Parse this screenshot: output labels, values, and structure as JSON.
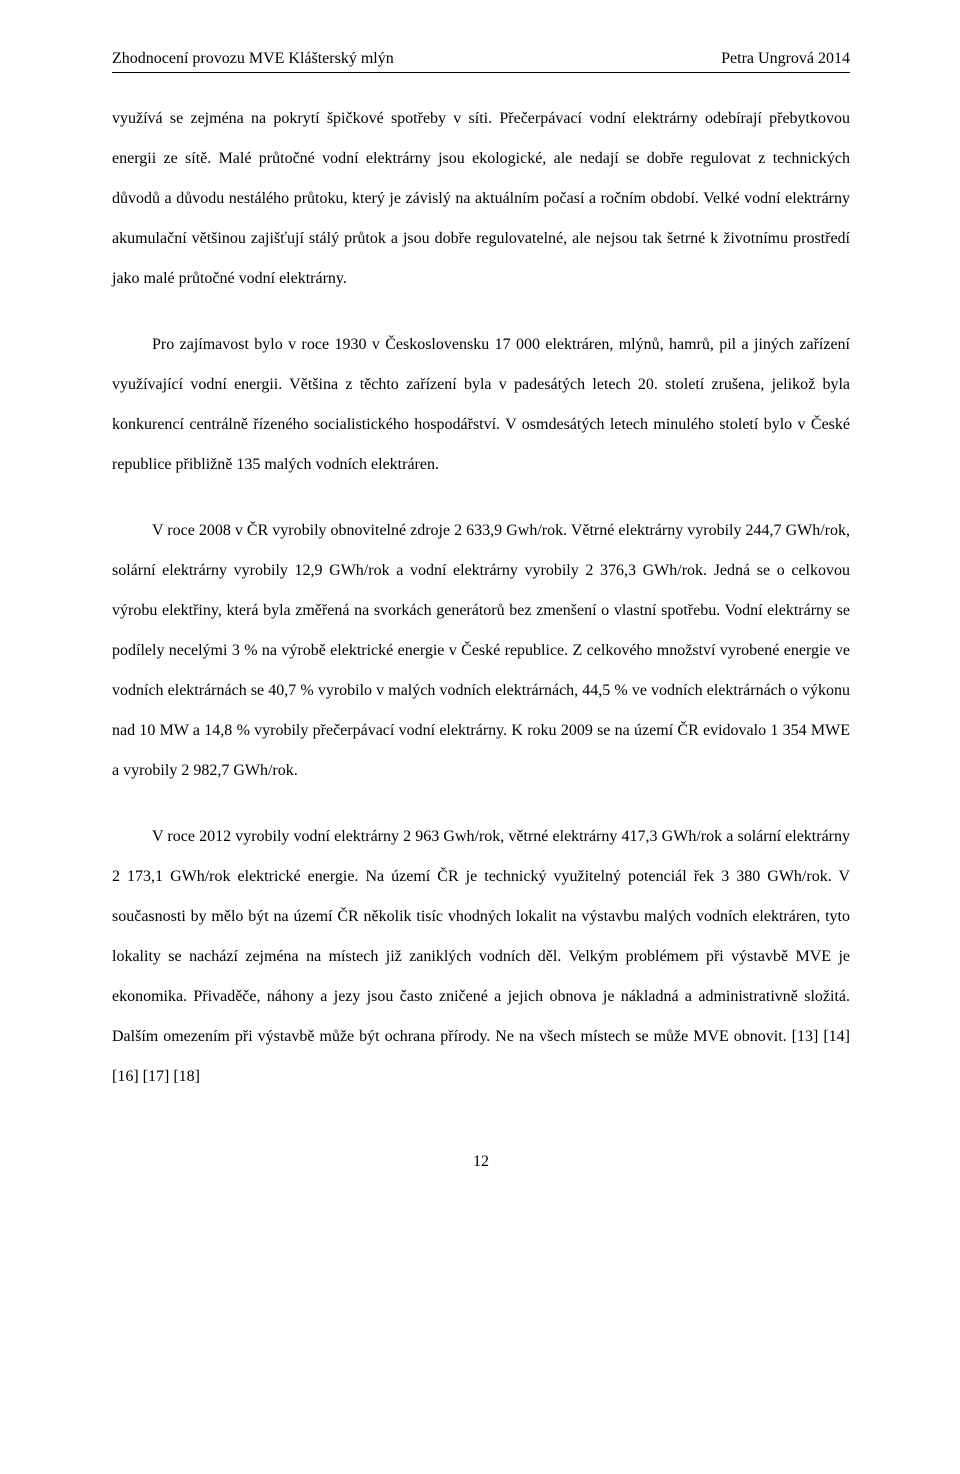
{
  "header": {
    "left": "Zhodnocení provozu MVE Klášterský mlýn",
    "right": "Petra Ungrová 2014"
  },
  "paragraphs": {
    "p1": "využívá se zejména na pokrytí špičkové spotřeby v síti. Přečerpávací vodní elektrárny odebírají přebytkovou energii ze sítě. Malé průtočné vodní elektrárny jsou ekologické, ale nedají se dobře regulovat z technických důvodů a důvodu nestálého průtoku, který je závislý na aktuálním počasí a ročním období. Velké vodní elektrárny akumulační většinou zajišťují stálý průtok a jsou dobře regulovatelné, ale nejsou tak šetrné k životnímu prostředí jako malé průtočné vodní elektrárny.",
    "p2": "Pro zajímavost bylo v roce 1930 v Československu 17 000 elektráren, mlýnů, hamrů, pil a jiných zařízení využívající vodní energii. Většina z těchto zařízení byla v padesátých letech 20. století zrušena, jelikož byla konkurencí centrálně řízeného socialistického hospodářství. V osmdesátých letech minulého století bylo v České republice přibližně 135 malých vodních elektráren.",
    "p3": "V roce 2008 v ČR vyrobily obnovitelné zdroje 2 633,9 Gwh/rok. Větrné elektrárny vyrobily 244,7 GWh/rok, solární elektrárny vyrobily 12,9 GWh/rok a vodní elektrárny vyrobily 2 376,3 GWh/rok. Jedná se o celkovou výrobu elektřiny, která byla změřená na svorkách generátorů bez zmenšení o vlastní spotřebu. Vodní elektrárny se podílely necelými 3 % na výrobě elektrické energie v České republice. Z celkového množství vyrobené energie ve vodních elektrárnách se 40,7 % vyrobilo v malých vodních elektrárnách, 44,5 % ve vodních elektrárnách o výkonu nad 10 MW a 14,8 % vyrobily přečerpávací vodní elektrárny. K roku 2009 se na území ČR evidovalo 1 354 MWE a vyrobily 2 982,7 GWh/rok.",
    "p4": "V roce 2012 vyrobily vodní elektrárny 2 963 Gwh/rok, větrné elektrárny 417,3 GWh/rok a solární elektrárny 2 173,1 GWh/rok elektrické energie. Na území ČR je technický využitelný potenciál řek 3 380 GWh/rok. V současnosti by mělo být na území ČR několik tisíc vhodných lokalit na výstavbu malých vodních elektráren, tyto lokality se nachází zejména na místech již zaniklých vodních děl. Velkým problémem při výstavbě MVE je ekonomika. Přivaděče, náhony a jezy jsou často zničené a jejich obnova je nákladná a administrativně složitá. Dalším omezením při výstavbě může být ochrana přírody. Ne na všech místech se může MVE obnovit. [13] [14] [16] [17] [18]"
  },
  "page_number": "12"
}
